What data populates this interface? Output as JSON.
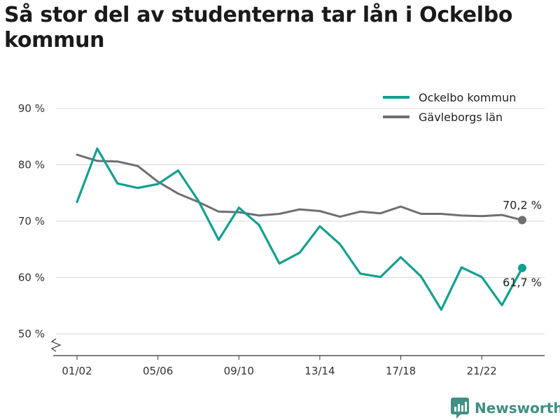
{
  "title": "Så stor del av studenterna tar lån i Ockelbo kommun",
  "brand": "Newsworthy",
  "colors": {
    "ockelbo": "#12a08f",
    "gavleborg": "#6f6e73",
    "grid": "#d6d6d6",
    "brand": "#3f8f82"
  },
  "chart_data": {
    "type": "line",
    "x_ticks": [
      "01/02",
      "05/06",
      "09/10",
      "13/14",
      "17/18",
      "21/22"
    ],
    "x": [
      "01/02",
      "02/03",
      "03/04",
      "04/05",
      "05/06",
      "06/07",
      "07/08",
      "08/09",
      "09/10",
      "10/11",
      "11/12",
      "12/13",
      "13/14",
      "14/15",
      "15/16",
      "16/17",
      "17/18",
      "18/19",
      "19/20",
      "20/21",
      "21/22",
      "22/23",
      "23/24"
    ],
    "y_ticks": [
      "50 %",
      "60 %",
      "70 %",
      "80 %",
      "90 %"
    ],
    "ylim": [
      50,
      90
    ],
    "series": [
      {
        "name": "Ockelbo kommun",
        "color": "#12a08f",
        "values": [
          73.4,
          82.9,
          76.7,
          75.9,
          76.6,
          79.0,
          73.6,
          66.7,
          72.4,
          69.3,
          62.5,
          64.4,
          69.1,
          65.9,
          60.7,
          60.1,
          63.6,
          60.2,
          54.3,
          61.8,
          60.1,
          55.1,
          61.7
        ],
        "end_label": "61,7 %"
      },
      {
        "name": "Gävleborgs län",
        "color": "#6f6e73",
        "values": [
          81.8,
          80.7,
          80.6,
          79.8,
          77.0,
          74.9,
          73.4,
          71.7,
          71.6,
          71.0,
          71.3,
          72.1,
          71.8,
          70.8,
          71.7,
          71.4,
          72.6,
          71.3,
          71.3,
          71.0,
          70.9,
          71.1,
          70.2
        ],
        "end_label": "70,2 %"
      }
    ],
    "legend": "top-right"
  }
}
